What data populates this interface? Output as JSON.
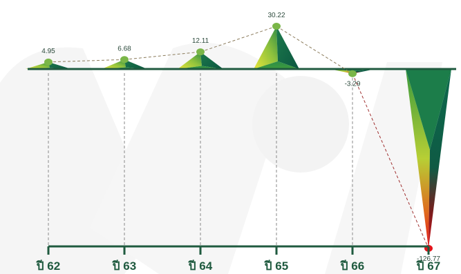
{
  "chart_data": {
    "type": "area",
    "categories": [
      "ปี 62",
      "ปี 63",
      "ปี 64",
      "ปี 65",
      "ปี 66",
      "ปี 67"
    ],
    "values": [
      4.95,
      6.68,
      12.11,
      30.22,
      -3.29,
      -126.77
    ],
    "value_labels": [
      "4.95",
      "6.68",
      "12.11",
      "30.22",
      "-3.29",
      "-126.77"
    ],
    "title": "",
    "xlabel": "",
    "ylabel": "",
    "grid": false,
    "legend": "none"
  },
  "colors": {
    "dark_green": "#0f6b4e",
    "mid_green": "#3a9a3d",
    "light_green": "#b7cf35",
    "marker_green": "#7ab648",
    "negative_red": "#e3141b",
    "axis": "#1f5a3f",
    "watermark": "#f4f4f4"
  }
}
